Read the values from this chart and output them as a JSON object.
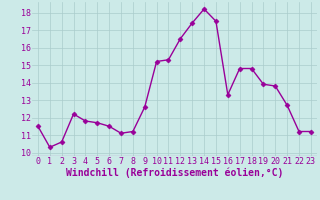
{
  "x": [
    0,
    1,
    2,
    3,
    4,
    5,
    6,
    7,
    8,
    9,
    10,
    11,
    12,
    13,
    14,
    15,
    16,
    17,
    18,
    19,
    20,
    21,
    22,
    23
  ],
  "y": [
    11.5,
    10.3,
    10.6,
    12.2,
    11.8,
    11.7,
    11.5,
    11.1,
    11.2,
    12.6,
    15.2,
    15.3,
    16.5,
    17.4,
    18.2,
    17.5,
    13.3,
    14.8,
    14.8,
    13.9,
    13.8,
    12.7,
    11.2,
    11.2
  ],
  "line_color": "#990099",
  "marker": "D",
  "marker_size": 2.5,
  "linewidth": 1.0,
  "bg_color": "#cceae8",
  "grid_color": "#aacccc",
  "xlabel": "Windchill (Refroidissement éolien,°C)",
  "xlabel_fontsize": 7,
  "ylabel_ticks": [
    10,
    11,
    12,
    13,
    14,
    15,
    16,
    17,
    18
  ],
  "ylim": [
    9.8,
    18.6
  ],
  "xlim": [
    -0.5,
    23.5
  ],
  "tick_fontsize": 6
}
